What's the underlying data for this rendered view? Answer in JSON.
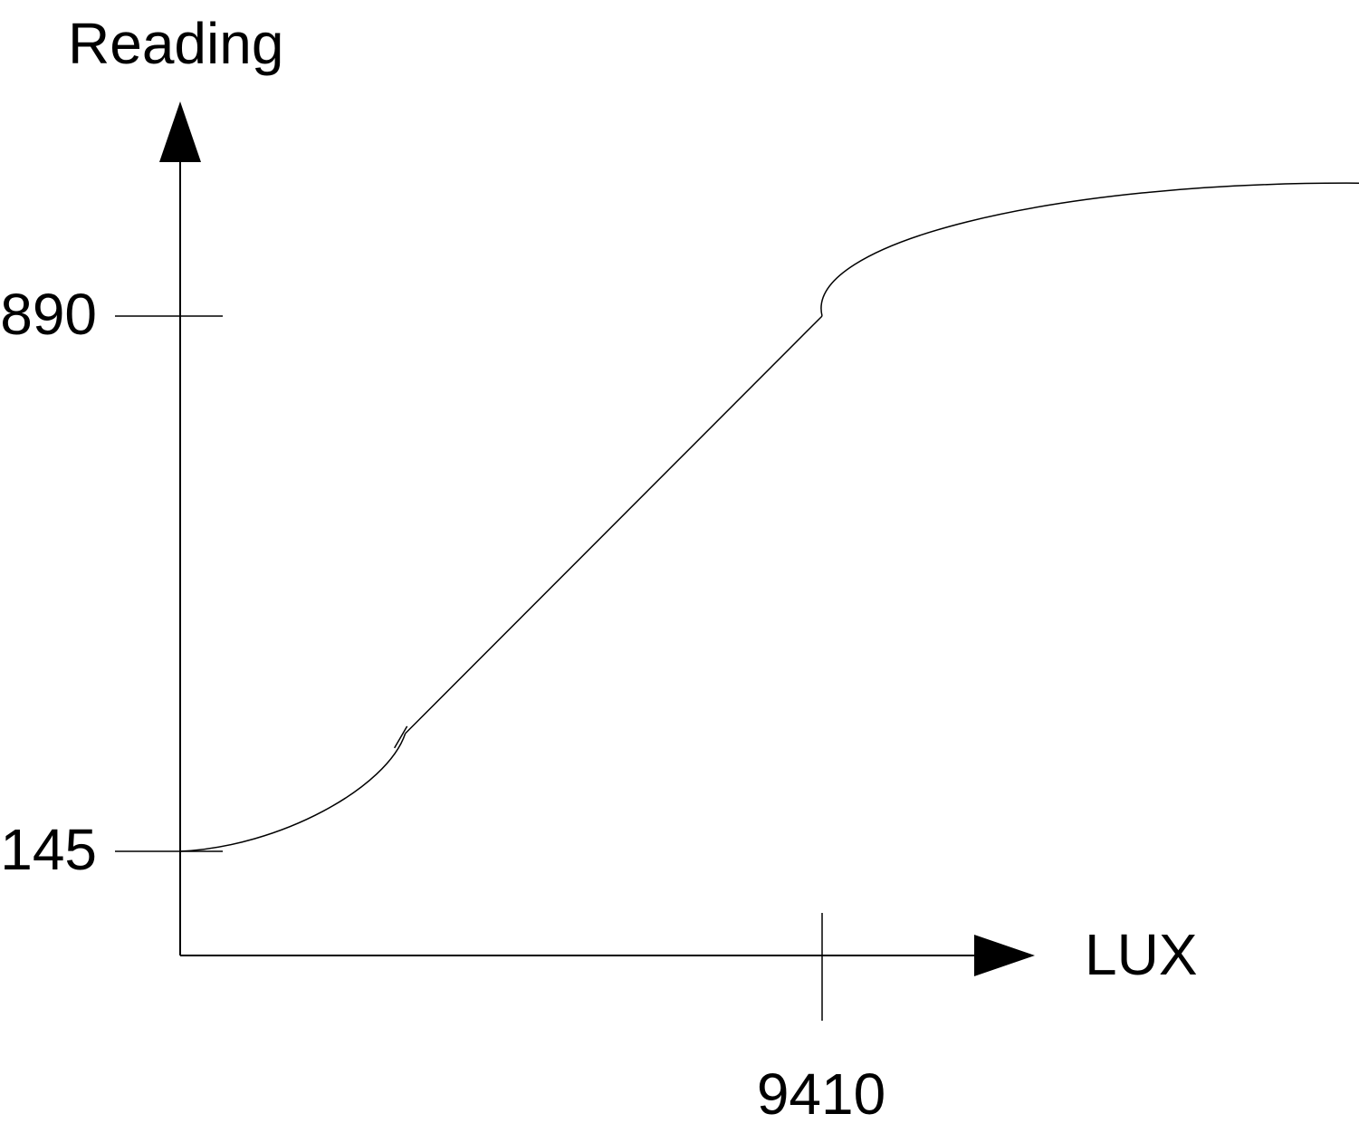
{
  "chart_data": {
    "type": "line",
    "title": "",
    "xlabel": "LUX",
    "ylabel": "Reading",
    "x_ticks": [
      {
        "value": 9410,
        "label": "9410"
      }
    ],
    "y_ticks": [
      {
        "value": 145,
        "label": "145"
      },
      {
        "value": 890,
        "label": "890"
      }
    ],
    "xlim": [
      0,
      17300
    ],
    "ylim": [
      0,
      1295
    ],
    "grid": false,
    "series": [
      {
        "color": "#000000",
        "x": [
          0,
          2000,
          3300,
          5000,
          7000,
          9410,
          10000,
          12000,
          15000,
          17300
        ],
        "y": [
          145,
          185,
          309,
          480,
          682,
          890,
          960,
          1030,
          1066,
          1075
        ]
      }
    ],
    "annotations": {
      "knee_low_tick": {
        "x": 3300,
        "y": 309
      },
      "knee_high_tick": {
        "x": 9410,
        "y": 890
      }
    }
  }
}
